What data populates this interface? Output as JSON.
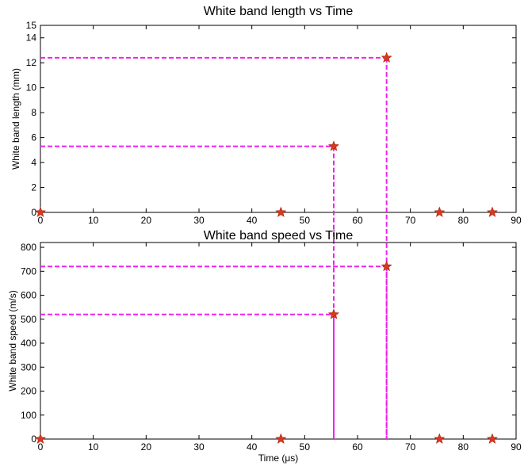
{
  "chart_data": [
    {
      "type": "scatter",
      "title": "White band length vs Time",
      "xlabel": "",
      "ylabel": "White band length (mm)",
      "xlim": [
        0,
        90
      ],
      "ylim": [
        0,
        15
      ],
      "xticks": [
        0,
        10,
        20,
        30,
        40,
        50,
        60,
        70,
        80,
        90
      ],
      "yticks": [
        0,
        2,
        4,
        6,
        8,
        10,
        12,
        14,
        15
      ],
      "grid": false,
      "marker": "star",
      "colors": {
        "marker": "#d43a1f",
        "marker_edge": "#b02010",
        "guide": "#ee22ee"
      },
      "points": [
        {
          "x": 0,
          "y": 0
        },
        {
          "x": 45.5,
          "y": 0
        },
        {
          "x": 55.5,
          "y": 5.3
        },
        {
          "x": 65.5,
          "y": 12.4
        },
        {
          "x": 75.5,
          "y": 0
        },
        {
          "x": 85.5,
          "y": 0
        }
      ],
      "guides": [
        {
          "x": 55.5,
          "y": 5.3
        },
        {
          "x": 65.5,
          "y": 12.4
        }
      ]
    },
    {
      "type": "scatter",
      "title": "White band speed vs Time",
      "xlabel": "Time (μs)",
      "ylabel": "White band speed (m/s)",
      "xlim": [
        0,
        90
      ],
      "ylim": [
        0,
        820
      ],
      "xticks": [
        0,
        10,
        20,
        30,
        40,
        50,
        60,
        70,
        80,
        90
      ],
      "yticks": [
        0,
        100,
        200,
        300,
        400,
        500,
        600,
        700,
        800
      ],
      "grid": false,
      "marker": "star",
      "colors": {
        "marker": "#d43a1f",
        "marker_edge": "#b02010",
        "guide": "#ee22ee"
      },
      "points": [
        {
          "x": 0,
          "y": 0
        },
        {
          "x": 45.5,
          "y": 0
        },
        {
          "x": 55.5,
          "y": 520
        },
        {
          "x": 65.5,
          "y": 720
        },
        {
          "x": 75.5,
          "y": 0
        },
        {
          "x": 85.5,
          "y": 0
        }
      ],
      "guides": [
        {
          "x": 55.5,
          "y": 520
        },
        {
          "x": 65.5,
          "y": 720
        }
      ]
    }
  ]
}
